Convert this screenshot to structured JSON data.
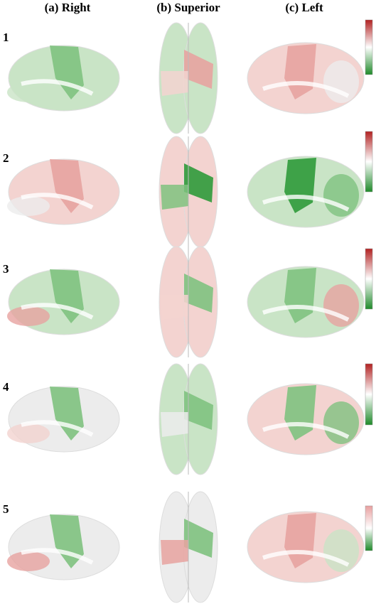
{
  "header": {
    "columns": [
      "(a) Right",
      "(b) Superior",
      "(c) Left"
    ]
  },
  "rows": [
    "1",
    "2",
    "3",
    "4",
    "5"
  ]
}
